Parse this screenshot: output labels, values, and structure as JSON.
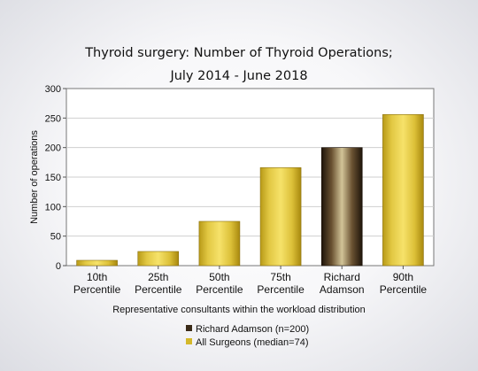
{
  "chart_data": {
    "type": "bar",
    "title_lines": [
      "Thyroid surgery: Number of Thyroid Operations;",
      "July 2014 - June 2018"
    ],
    "xlabel": "Representative consultants within the workload distribution",
    "ylabel": "Number of operations",
    "ylim": [
      0,
      300
    ],
    "yticks": [
      0,
      50,
      100,
      150,
      200,
      250,
      300
    ],
    "grid": true,
    "categories": [
      [
        "10th",
        "Percentile"
      ],
      [
        "25th",
        "Percentile"
      ],
      [
        "50th",
        "Percentile"
      ],
      [
        "75th",
        "Percentile"
      ],
      [
        "Richard",
        "Adamson"
      ],
      [
        "90th",
        "Percentile"
      ]
    ],
    "values": [
      9,
      24,
      75,
      166,
      200,
      256
    ],
    "bar_series": [
      1,
      1,
      1,
      1,
      0,
      1
    ],
    "legend_position": "bottom-center",
    "series": [
      {
        "name": "Richard Adamson (n=200)",
        "color": "#3a2a18"
      },
      {
        "name": "All Surgeons (median=74)",
        "color": "#d4b82a"
      }
    ]
  }
}
